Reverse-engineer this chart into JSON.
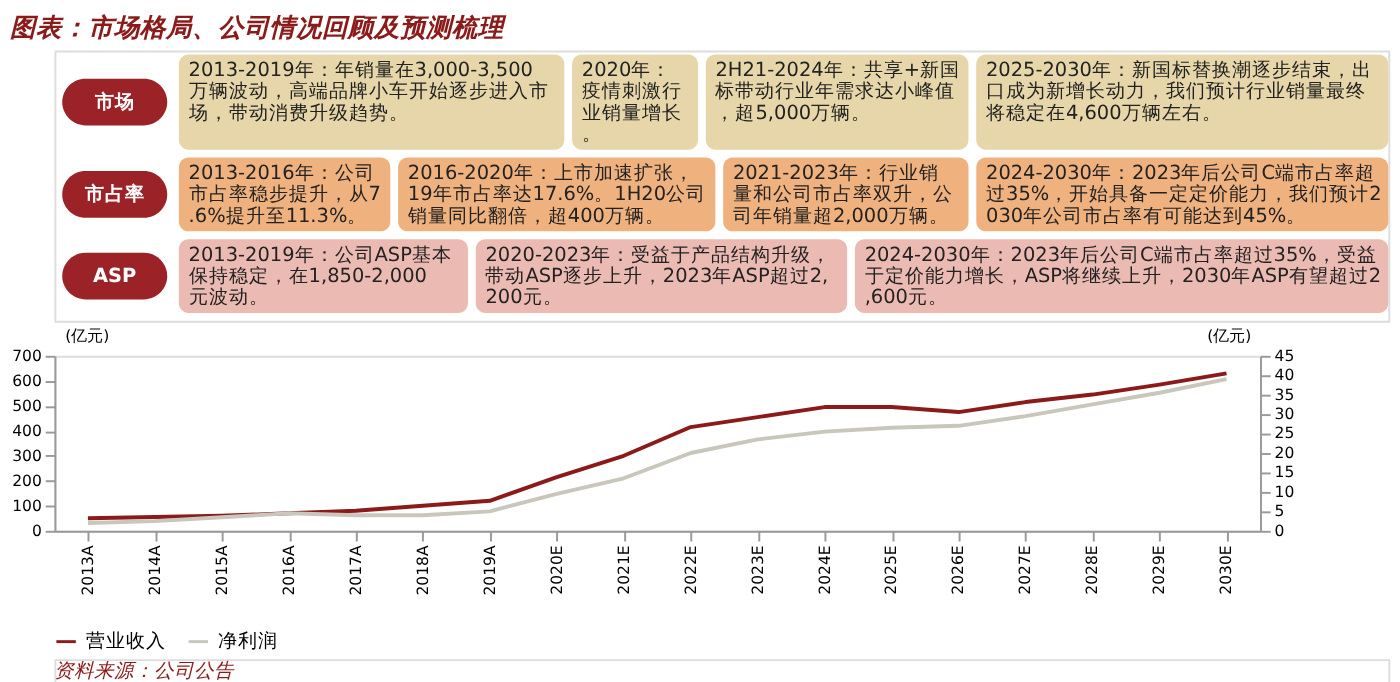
{
  "chart_data": {
    "type": "line",
    "title": "图表：市场格局、公司情况回顾及预测梳理",
    "categories": [
      "2013A",
      "2014A",
      "2015A",
      "2016A",
      "2017A",
      "2018A",
      "2019A",
      "2020E",
      "2021E",
      "2022E",
      "2023E",
      "2024E",
      "2025E",
      "2026E",
      "2027E",
      "2028E",
      "2029E",
      "2030E"
    ],
    "series": [
      {
        "name": "营业收入",
        "color": "#8b1a1a",
        "values": [
          50,
          55,
          60,
          70,
          80,
          100,
          120,
          215,
          300,
          415,
          455,
          495,
          495,
          475,
          515,
          545,
          585,
          630
        ]
      },
      {
        "name": "净利润",
        "color": "#c9c6bb",
        "axis": "y2",
        "values": [
          2,
          2.5,
          3.5,
          4.5,
          4,
          4,
          5,
          9.5,
          13.5,
          20,
          23.5,
          25.5,
          26.5,
          27,
          29.5,
          32.5,
          35.5,
          39
        ]
      }
    ],
    "ylabel": "(亿元)",
    "y2label": "(亿元)",
    "ylim": [
      0,
      700
    ],
    "yticks": [
      0,
      100,
      200,
      300,
      400,
      500,
      600,
      700
    ],
    "y2lim": [
      0,
      45
    ],
    "y2ticks": [
      0,
      5,
      10,
      15,
      20,
      25,
      30,
      35,
      40,
      45
    ],
    "legend": "bottom",
    "grid": false,
    "annotations": [
      "市场",
      "2013-2019年：年销量在3,000-3,500万辆波动，高端品牌小车开始逐步进入市场，带动消费升级趋势。",
      "2020年：疫情刺激行业销量增长。",
      "2H21-2024年：共享+新国标带动行业年需求达小峰值，超5,000万辆。",
      "2025-2030年：新国标替换潮逐步结束，出口成为新增长动力，我们预计行业销量最终将稳定在4,600万辆左右。",
      "市占率",
      "2013-2016年：公司市占率稳步提升，从7.6%提升至11.3%。",
      "2016-2020年：上市加速扩张，19年市占率达17.6%。1H20公司销量同比翻倍，超400万辆。",
      "2021-2023年：行业销量和公司市占率双升，公司年销量超2,000万辆。",
      "2024-2030年：2023年后公司C端市占率超过35%，开始具备一定定价能力，我们预计2030年公司市占率有可能达到45%。",
      "ASP",
      "2013-2019年：公司ASP基本保持稳定，在1,850-2,000元波动。",
      "2020-2023年：受益于产品结构升级，带动ASP逐步上升，2023年ASP超过2,200元。",
      "2024-2030年：2023年后公司C端市占率超过35%，受益于定价能力增长，ASP将继续上升，2030年ASP有望超过2,600元。",
      "资料来源：公司公告"
    ]
  }
}
